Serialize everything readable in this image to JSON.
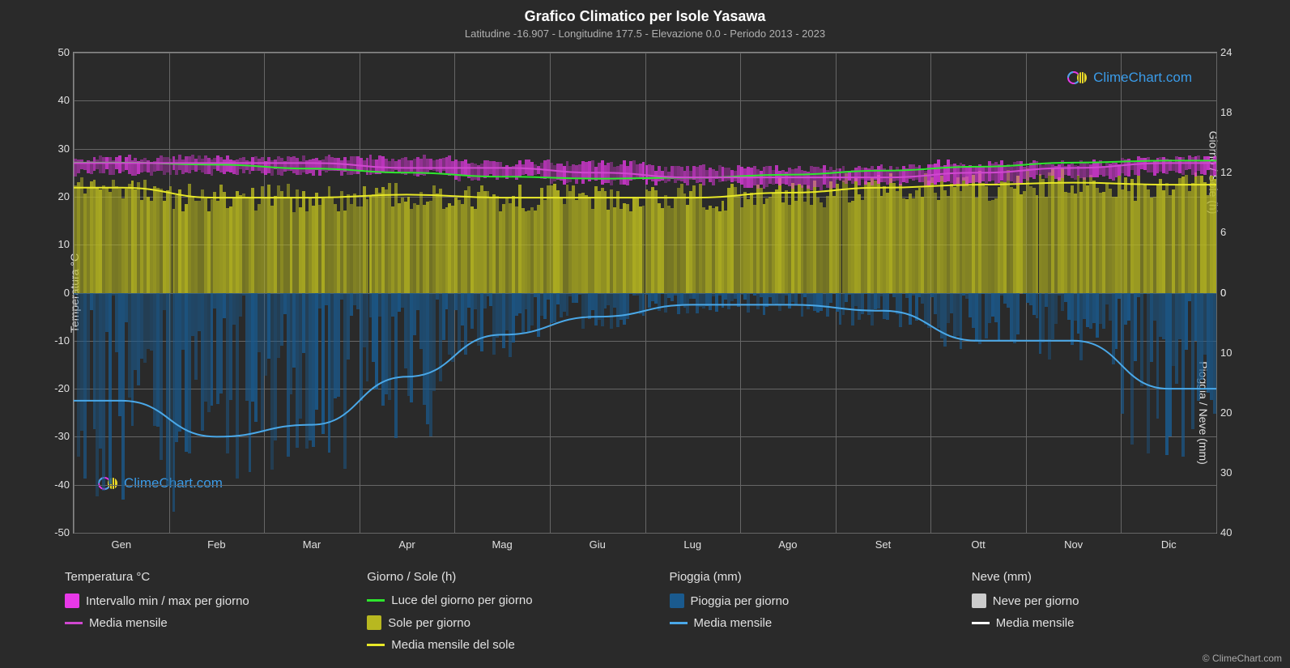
{
  "title": "Grafico Climatico per Isole Yasawa",
  "subtitle": "Latitudine -16.907 - Longitudine 177.5 - Elevazione 0.0 - Periodo 2013 - 2023",
  "chart": {
    "type": "climate-composite",
    "background_color": "#2a2a2a",
    "grid_color": "#666666",
    "text_color": "#e0e0e0",
    "months": [
      "Gen",
      "Feb",
      "Mar",
      "Apr",
      "Mag",
      "Giu",
      "Lug",
      "Ago",
      "Set",
      "Ott",
      "Nov",
      "Dic"
    ],
    "y_left": {
      "label": "Temperatura °C",
      "min": -50,
      "max": 50,
      "ticks": [
        -50,
        -40,
        -30,
        -20,
        -10,
        0,
        10,
        20,
        30,
        40,
        50
      ]
    },
    "y_right_top": {
      "label": "Giorno / Sole (h)",
      "min": 0,
      "max": 24,
      "ticks": [
        0,
        6,
        12,
        18,
        24
      ]
    },
    "y_right_bottom": {
      "label": "Pioggia / Neve (mm)",
      "min": 0,
      "max": 40,
      "ticks": [
        0,
        10,
        20,
        30,
        40
      ]
    },
    "series": {
      "temp_max": {
        "color": "#e838e8",
        "values": [
          28,
          28,
          28,
          28,
          27,
          27,
          26,
          26,
          26,
          27,
          27,
          28
        ]
      },
      "temp_min": {
        "color": "#e838e8",
        "values": [
          25,
          25,
          25,
          25,
          24,
          23,
          23,
          22,
          23,
          23,
          24,
          25
        ]
      },
      "temp_mean": {
        "color": "#d048d0",
        "values": [
          27,
          27,
          27,
          26,
          26,
          25,
          24,
          24,
          24,
          25,
          26,
          27
        ],
        "line_width": 2
      },
      "daylight": {
        "color": "#2ee62e",
        "values": [
          13,
          12.8,
          12.4,
          12,
          11.6,
          11.4,
          11.5,
          11.8,
          12.2,
          12.6,
          13,
          13.2
        ],
        "line_width": 2
      },
      "sunshine": {
        "fill_color": "#b8b820",
        "fill_opacity": 0.75,
        "values": [
          10.5,
          9.5,
          9.5,
          9.8,
          9.5,
          9.5,
          9.5,
          10,
          10.5,
          10.8,
          11,
          10.8
        ]
      },
      "sunshine_mean": {
        "color": "#e8e828",
        "values": [
          10.5,
          9.5,
          9.5,
          9.8,
          9.5,
          9.5,
          9.5,
          10,
          10.5,
          10.8,
          11,
          10.8
        ],
        "line_width": 2
      },
      "rain_daily": {
        "fill_color": "#1a5a8e",
        "fill_opacity": 0.8,
        "max_values": [
          35,
          38,
          32,
          25,
          12,
          6,
          4,
          4,
          6,
          10,
          12,
          28
        ]
      },
      "rain_mean": {
        "color": "#4aa8e8",
        "values": [
          18,
          24,
          22,
          14,
          7,
          4,
          2,
          2,
          3,
          8,
          8,
          16
        ],
        "line_width": 2
      },
      "snow_daily": {
        "fill_color": "#cccccc"
      },
      "snow_mean": {
        "color": "#ffffff"
      }
    }
  },
  "legend": {
    "columns": [
      {
        "header": "Temperatura °C",
        "items": [
          {
            "type": "swatch",
            "color": "#e838e8",
            "label": "Intervallo min / max per giorno"
          },
          {
            "type": "line",
            "color": "#d048d0",
            "label": "Media mensile"
          }
        ]
      },
      {
        "header": "Giorno / Sole (h)",
        "items": [
          {
            "type": "line",
            "color": "#2ee62e",
            "label": "Luce del giorno per giorno"
          },
          {
            "type": "swatch",
            "color": "#b8b820",
            "label": "Sole per giorno"
          },
          {
            "type": "line",
            "color": "#e8e828",
            "label": "Media mensile del sole"
          }
        ]
      },
      {
        "header": "Pioggia (mm)",
        "items": [
          {
            "type": "swatch",
            "color": "#1a5a8e",
            "label": "Pioggia per giorno"
          },
          {
            "type": "line",
            "color": "#4aa8e8",
            "label": "Media mensile"
          }
        ]
      },
      {
        "header": "Neve (mm)",
        "items": [
          {
            "type": "swatch",
            "color": "#cccccc",
            "label": "Neve per giorno"
          },
          {
            "type": "line",
            "color": "#ffffff",
            "label": "Media mensile"
          }
        ]
      }
    ]
  },
  "watermark": "ClimeChart.com",
  "copyright": "© ClimeChart.com"
}
